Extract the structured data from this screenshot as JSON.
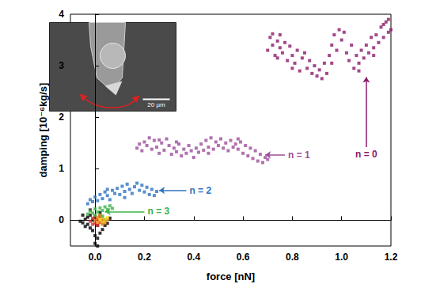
{
  "chart_data": {
    "type": "scatter",
    "x_label": "force [nN]",
    "y_label": "damping [10⁻⁶kg/s]",
    "xlim": [
      -0.1,
      1.2
    ],
    "ylim": [
      -0.5,
      4
    ],
    "xticks": [
      {
        "value": 0,
        "label": "0.0"
      },
      {
        "value": 0.2,
        "label": "0.2"
      },
      {
        "value": 0.4,
        "label": "0.4"
      },
      {
        "value": 0.6,
        "label": "0.6"
      },
      {
        "value": 0.8,
        "label": "0.8"
      },
      {
        "value": 1,
        "label": "1.0"
      },
      {
        "value": 1.2,
        "label": "1.2"
      }
    ],
    "yticks": [
      0,
      1,
      2,
      3,
      4
    ],
    "grid": false,
    "marker": "square",
    "inset_label": "20 µm",
    "series": [
      {
        "color": "#000000",
        "x": [
          -0.05,
          -0.04,
          -0.04,
          -0.03,
          -0.03,
          -0.02,
          -0.02,
          -0.01,
          -0.01,
          0.0,
          0.0,
          0.0,
          0.01,
          0.01,
          0.02,
          0.02,
          0.03,
          0.03,
          0.04,
          0.04,
          0.05,
          -0.05,
          -0.06,
          0.01,
          0.06,
          -0.02,
          0.02
        ],
        "values": [
          -0.05,
          0.02,
          -0.12,
          0.06,
          -0.08,
          -0.15,
          0.1,
          -0.2,
          0.0,
          -0.3,
          -0.45,
          0.05,
          -0.35,
          -0.1,
          -0.25,
          0.08,
          -0.05,
          -0.18,
          0.0,
          -0.1,
          -0.06,
          0.1,
          -0.02,
          -0.5,
          0.04,
          0.2,
          0.15
        ]
      },
      {
        "color": "#e0302a",
        "x": [
          -0.02,
          -0.01,
          0.0,
          0.01,
          0.02,
          0.0,
          0.01,
          -0.01,
          0.02,
          0.03
        ],
        "values": [
          -0.02,
          0.04,
          -0.06,
          0.02,
          -0.04,
          0.08,
          -0.1,
          -0.08,
          0.05,
          0.0
        ]
      },
      {
        "color": "#f08a20",
        "x": [
          0.0,
          0.01,
          0.02,
          0.03,
          0.04,
          0.02,
          0.03,
          0.05,
          0.01
        ],
        "values": [
          0.0,
          0.06,
          -0.02,
          0.04,
          -0.05,
          0.1,
          -0.08,
          0.02,
          -0.04
        ]
      },
      {
        "color": "#f5e01f",
        "x": [
          0.02,
          0.03,
          0.04,
          0.03,
          0.05
        ],
        "values": [
          0.02,
          0.06,
          0.0,
          -0.03,
          0.05
        ]
      },
      {
        "name": "n = 3",
        "color": "#3cb34a",
        "x": [
          -0.03,
          -0.02,
          -0.01,
          0.0,
          0.01,
          0.02,
          0.03,
          0.04,
          0.05,
          0.06,
          0.07,
          0.0,
          0.03
        ],
        "values": [
          0.12,
          0.18,
          0.14,
          0.22,
          0.16,
          0.24,
          0.19,
          0.26,
          0.21,
          0.28,
          0.23,
          0.1,
          0.08
        ],
        "annotation": {
          "text": "n = 3",
          "from": [
            0.2,
            0.17
          ],
          "to": [
            0.04,
            0.17
          ]
        }
      },
      {
        "name": "n = 2",
        "color": "#2f73c0",
        "x": [
          -0.03,
          -0.02,
          -0.01,
          0.0,
          0.01,
          0.02,
          0.03,
          0.04,
          0.05,
          0.06,
          0.07,
          0.08,
          0.09,
          0.1,
          0.11,
          0.12,
          0.13,
          0.14,
          0.15,
          0.16,
          0.17,
          0.18,
          0.19,
          0.2,
          0.21,
          0.22,
          0.23,
          0.24,
          0.25,
          0.05,
          0.12
        ],
        "values": [
          0.32,
          0.4,
          0.36,
          0.45,
          0.38,
          0.5,
          0.42,
          0.55,
          0.48,
          0.4,
          0.58,
          0.52,
          0.62,
          0.5,
          0.66,
          0.56,
          0.7,
          0.6,
          0.52,
          0.65,
          0.72,
          0.58,
          0.68,
          0.55,
          0.64,
          0.5,
          0.6,
          0.48,
          0.56,
          0.6,
          0.44
        ],
        "annotation": {
          "text": "n = 2",
          "from": [
            0.37,
            0.58
          ],
          "to": [
            0.26,
            0.58
          ]
        }
      },
      {
        "name": "n = 1",
        "color": "#9b4f9b",
        "x": [
          0.17,
          0.18,
          0.19,
          0.2,
          0.21,
          0.22,
          0.23,
          0.24,
          0.25,
          0.26,
          0.27,
          0.28,
          0.29,
          0.3,
          0.31,
          0.32,
          0.33,
          0.34,
          0.35,
          0.36,
          0.37,
          0.38,
          0.39,
          0.4,
          0.41,
          0.42,
          0.43,
          0.44,
          0.45,
          0.46,
          0.47,
          0.48,
          0.49,
          0.5,
          0.51,
          0.52,
          0.53,
          0.54,
          0.55,
          0.56,
          0.57,
          0.58,
          0.59,
          0.6,
          0.61,
          0.62,
          0.63,
          0.64,
          0.65,
          0.66,
          0.67,
          0.68,
          0.69,
          0.7,
          0.33,
          0.46,
          0.58,
          0.26
        ],
        "values": [
          1.4,
          1.48,
          1.35,
          1.52,
          1.45,
          1.6,
          1.38,
          1.55,
          1.42,
          1.3,
          1.5,
          1.36,
          1.58,
          1.45,
          1.28,
          1.4,
          1.33,
          1.48,
          1.25,
          1.38,
          1.3,
          1.45,
          1.35,
          1.22,
          1.4,
          1.32,
          1.48,
          1.36,
          1.55,
          1.42,
          1.6,
          1.38,
          1.52,
          1.45,
          1.58,
          1.4,
          1.5,
          1.35,
          1.55,
          1.42,
          1.48,
          1.38,
          1.52,
          1.3,
          1.45,
          1.25,
          1.4,
          1.2,
          1.35,
          1.15,
          1.28,
          1.12,
          1.22,
          1.18,
          1.52,
          1.3,
          1.58,
          1.56
        ],
        "annotation": {
          "text": "n = 1",
          "from": [
            0.77,
            1.27
          ],
          "to": [
            0.69,
            1.27
          ]
        }
      },
      {
        "name": "n = 0",
        "color": "#8b1a6b",
        "x": [
          0.7,
          0.71,
          0.72,
          0.72,
          0.73,
          0.74,
          0.75,
          0.75,
          0.76,
          0.77,
          0.78,
          0.79,
          0.8,
          0.8,
          0.81,
          0.82,
          0.83,
          0.84,
          0.85,
          0.86,
          0.87,
          0.88,
          0.89,
          0.9,
          0.91,
          0.92,
          0.93,
          0.94,
          0.95,
          0.96,
          0.97,
          0.98,
          0.99,
          1.0,
          1.01,
          1.02,
          1.03,
          1.04,
          1.05,
          1.06,
          1.07,
          1.08,
          1.09,
          1.1,
          1.11,
          1.12,
          1.13,
          1.14,
          1.15,
          1.16,
          1.17,
          1.18,
          1.19,
          1.19,
          1.2,
          1.17,
          1.13,
          1.07,
          0.96,
          0.74
        ],
        "values": [
          3.3,
          3.55,
          3.4,
          3.62,
          3.2,
          3.48,
          3.35,
          3.6,
          3.25,
          3.45,
          3.1,
          3.38,
          2.95,
          3.2,
          3.05,
          3.3,
          2.9,
          3.15,
          3.25,
          2.95,
          3.1,
          2.85,
          3.0,
          2.8,
          2.92,
          2.75,
          3.05,
          2.85,
          3.2,
          3.4,
          3.6,
          3.3,
          3.7,
          3.5,
          3.65,
          3.25,
          3.1,
          3.4,
          2.95,
          3.2,
          3.05,
          3.3,
          3.15,
          3.4,
          3.25,
          3.55,
          3.35,
          3.6,
          3.45,
          3.75,
          3.55,
          3.85,
          3.65,
          3.9,
          3.7,
          3.8,
          3.2,
          2.9,
          3.05,
          3.15
        ],
        "annotation": {
          "text": "n = 0",
          "from": [
            1.1,
            1.42
          ],
          "to": [
            1.1,
            2.78
          ]
        }
      }
    ]
  }
}
